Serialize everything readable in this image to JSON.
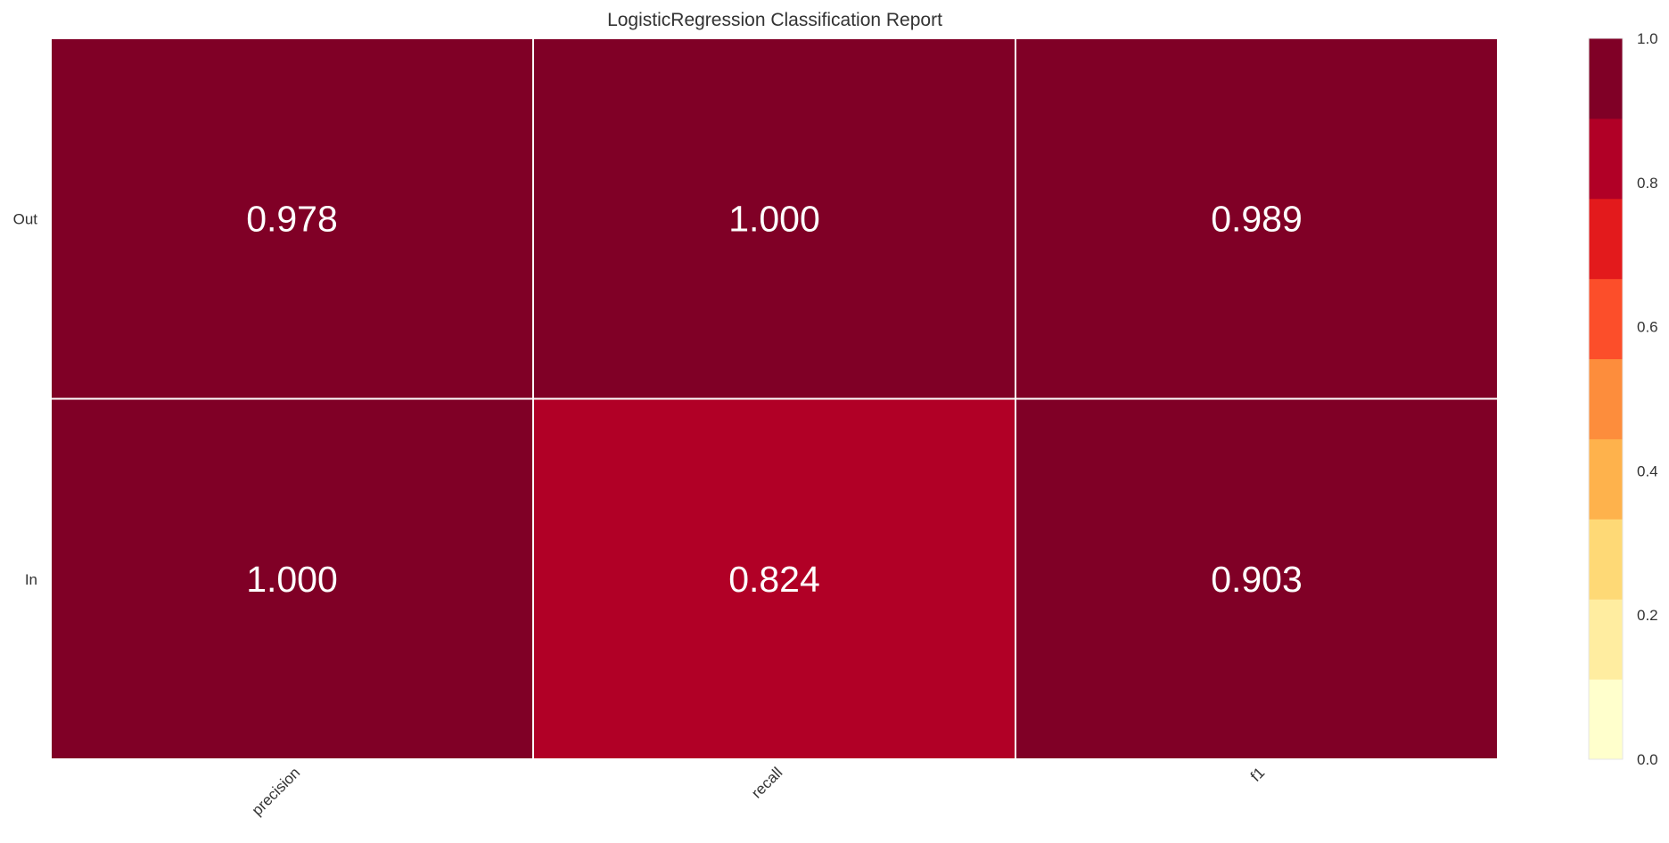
{
  "chart_data": {
    "type": "heatmap",
    "title": "LogisticRegression Classification Report",
    "columns": [
      "precision",
      "recall",
      "f1"
    ],
    "rows": [
      "Out",
      "In"
    ],
    "values": [
      [
        0.978,
        1.0,
        0.989
      ],
      [
        1.0,
        0.824,
        0.903
      ]
    ],
    "cell_labels": [
      [
        "0.978",
        "1.000",
        "0.989"
      ],
      [
        "1.000",
        "0.824",
        "0.903"
      ]
    ],
    "colorbar": {
      "range": [
        0.0,
        1.0
      ],
      "tick_labels": [
        "0.0",
        "0.2",
        "0.4",
        "0.6",
        "0.8",
        "1.0"
      ],
      "bins": 9,
      "colors": [
        "#ffffcc",
        "#ffeda0",
        "#fed976",
        "#feb24c",
        "#fd8d3c",
        "#fc4e2a",
        "#e31a1c",
        "#b10026",
        "#800026"
      ]
    },
    "grid": false
  }
}
